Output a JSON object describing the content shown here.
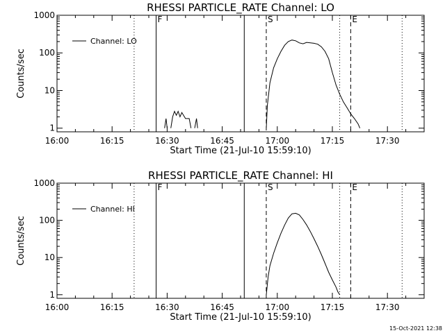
{
  "timestamp": "15-Oct-2021 12:38",
  "chart_data": [
    {
      "type": "line",
      "title": "RHESSI PARTICLE_RATE Channel: LO",
      "xlabel": "Start Time (21-Jul-10 15:59:10)",
      "ylabel": "Counts/sec",
      "yscale": "log",
      "ylim": [
        0.8,
        1000
      ],
      "xlim": [
        "16:00",
        "17:40"
      ],
      "x_ticks": [
        "16:00",
        "16:15",
        "16:30",
        "16:45",
        "17:00",
        "17:15",
        "17:30"
      ],
      "y_ticks": [
        "1000",
        "100",
        "10",
        "1"
      ],
      "legend": {
        "position": "top-left",
        "entries": [
          "Channel: LO"
        ]
      },
      "markers": [
        {
          "label": "",
          "time": "16:21",
          "style": "dotted"
        },
        {
          "label": "F",
          "time": "16:27",
          "style": "solid"
        },
        {
          "label": "",
          "time": "16:51",
          "style": "solid"
        },
        {
          "label": "S",
          "time": "16:57",
          "style": "dashed"
        },
        {
          "label": "",
          "time": "17:17",
          "style": "dotted"
        },
        {
          "label": "E",
          "time": "17:20",
          "style": "dashed"
        },
        {
          "label": "",
          "time": "17:34",
          "style": "dotted"
        }
      ],
      "series": [
        {
          "name": "Channel: LO",
          "segments": [
            [
              [
                "16:29.3",
                1
              ],
              [
                "16:29.7",
                1.8
              ],
              [
                "16:30.0",
                1
              ]
            ],
            [
              [
                "16:31.0",
                1
              ],
              [
                "16:31.5",
                2.0
              ],
              [
                "16:32.0",
                2.8
              ],
              [
                "16:32.5",
                2.2
              ],
              [
                "16:33.0",
                2.8
              ],
              [
                "16:33.5",
                2.0
              ],
              [
                "16:34.0",
                2.6
              ],
              [
                "16:35.0",
                1.8
              ],
              [
                "16:36.0",
                1.8
              ],
              [
                "16:36.5",
                1
              ]
            ],
            [
              [
                "16:37.5",
                1
              ],
              [
                "16:38.0",
                1.8
              ],
              [
                "16:38.3",
                1
              ]
            ],
            [
              [
                "16:57.0",
                1
              ],
              [
                "16:57.3",
                4
              ],
              [
                "16:58.0",
                16
              ],
              [
                "16:59.0",
                40
              ],
              [
                "17:00.0",
                70
              ],
              [
                "17:01.0",
                110
              ],
              [
                "17:02.0",
                160
              ],
              [
                "17:03.0",
                200
              ],
              [
                "17:04.0",
                220
              ],
              [
                "17:05.0",
                210
              ],
              [
                "17:06.0",
                185
              ],
              [
                "17:07.0",
                175
              ],
              [
                "17:08.0",
                190
              ],
              [
                "17:09.0",
                185
              ],
              [
                "17:10.0",
                180
              ],
              [
                "17:11.0",
                170
              ],
              [
                "17:12.0",
                145
              ],
              [
                "17:13.0",
                110
              ],
              [
                "17:14.0",
                70
              ],
              [
                "17:15.0",
                30
              ],
              [
                "17:16.0",
                14
              ],
              [
                "17:17.0",
                8
              ],
              [
                "17:18.0",
                5
              ],
              [
                "17:19.0",
                3.5
              ],
              [
                "17:20.0",
                2.4
              ],
              [
                "17:21.0",
                1.8
              ],
              [
                "17:22.0",
                1.3
              ],
              [
                "17:22.5",
                1
              ]
            ]
          ]
        }
      ]
    },
    {
      "type": "line",
      "title": "RHESSI PARTICLE_RATE Channel: HI",
      "xlabel": "Start Time (21-Jul-10 15:59:10)",
      "ylabel": "Counts/sec",
      "yscale": "log",
      "ylim": [
        0.8,
        1000
      ],
      "xlim": [
        "16:00",
        "17:40"
      ],
      "x_ticks": [
        "16:00",
        "16:15",
        "16:30",
        "16:45",
        "17:00",
        "17:15",
        "17:30"
      ],
      "y_ticks": [
        "1000",
        "100",
        "10",
        "1"
      ],
      "legend": {
        "position": "top-left",
        "entries": [
          "Channel: HI"
        ]
      },
      "markers": [
        {
          "label": "",
          "time": "16:21",
          "style": "dotted"
        },
        {
          "label": "F",
          "time": "16:27",
          "style": "solid"
        },
        {
          "label": "",
          "time": "16:51",
          "style": "solid"
        },
        {
          "label": "S",
          "time": "16:57",
          "style": "dashed"
        },
        {
          "label": "",
          "time": "17:17",
          "style": "dotted"
        },
        {
          "label": "E",
          "time": "17:20",
          "style": "dashed"
        },
        {
          "label": "",
          "time": "17:34",
          "style": "dotted"
        }
      ],
      "series": [
        {
          "name": "Channel: HI",
          "segments": [
            [
              [
                "16:57.0",
                1
              ],
              [
                "16:57.5",
                3
              ],
              [
                "16:58.0",
                6
              ],
              [
                "16:59.0",
                13
              ],
              [
                "17:00.0",
                25
              ],
              [
                "17:01.0",
                45
              ],
              [
                "17:02.0",
                75
              ],
              [
                "17:03.0",
                115
              ],
              [
                "17:04.0",
                150
              ],
              [
                "17:05.0",
                155
              ],
              [
                "17:06.0",
                140
              ],
              [
                "17:07.0",
                105
              ],
              [
                "17:08.0",
                75
              ],
              [
                "17:09.0",
                50
              ],
              [
                "17:10.0",
                32
              ],
              [
                "17:11.0",
                20
              ],
              [
                "17:12.0",
                12
              ],
              [
                "17:13.0",
                7
              ],
              [
                "17:14.0",
                4
              ],
              [
                "17:15.0",
                2.5
              ],
              [
                "17:16.0",
                1.6
              ],
              [
                "17:16.5",
                1.2
              ],
              [
                "17:17.0",
                1
              ]
            ]
          ]
        }
      ]
    }
  ]
}
